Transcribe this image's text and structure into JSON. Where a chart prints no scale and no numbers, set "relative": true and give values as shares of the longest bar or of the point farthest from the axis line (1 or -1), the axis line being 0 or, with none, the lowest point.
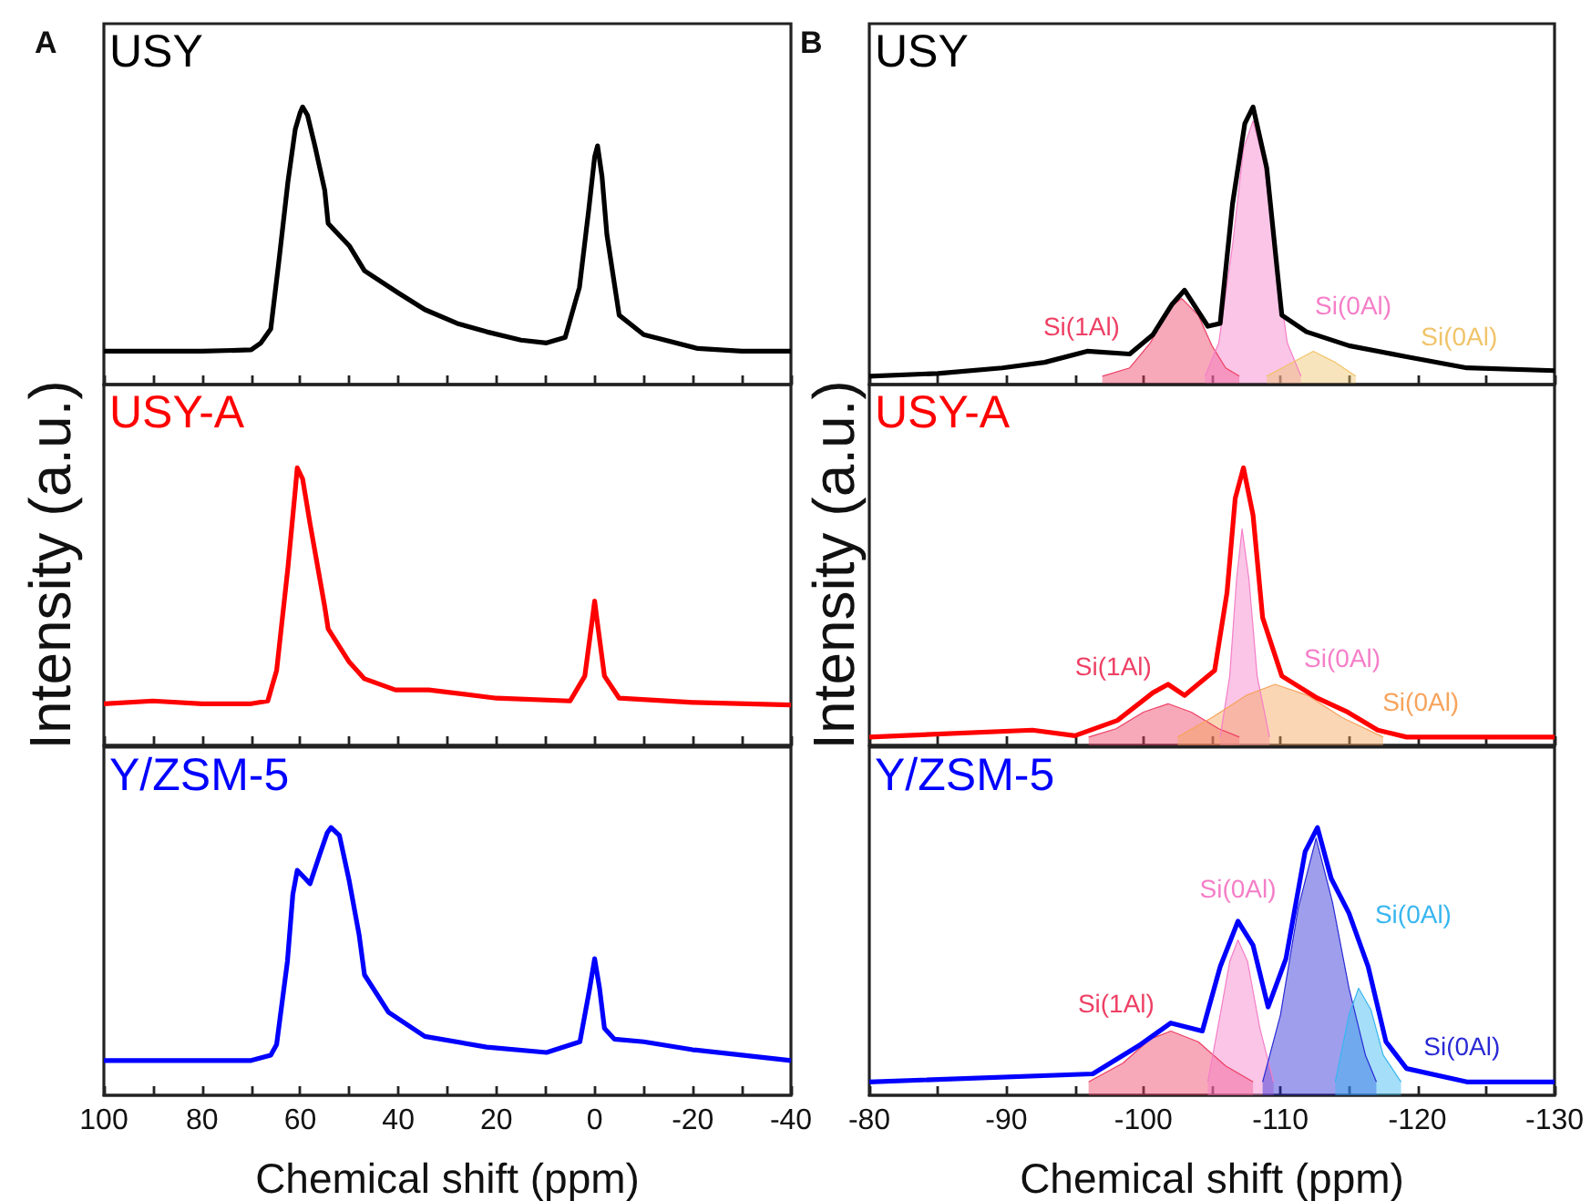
{
  "chart_data": [
    {
      "type": "line",
      "relative": true,
      "annotations": [
        "A"
      ],
      "xlim": [
        100,
        -40
      ],
      "xticks": [
        100,
        {
          "value": 90,
          "label": null
        },
        80,
        {
          "value": 70,
          "label": null
        },
        60,
        {
          "value": 50,
          "label": null
        },
        40,
        {
          "value": 30,
          "label": null
        },
        20,
        {
          "value": 10,
          "label": null
        },
        0,
        {
          "value": -10,
          "label": null
        },
        -20,
        {
          "value": -30,
          "label": null
        },
        -40
      ],
      "tick_labels": false,
      "ylabel": null,
      "series": [
        {
          "name": "USY",
          "type": "line",
          "color": "#000000",
          "x": [
            100,
            80,
            70,
            68,
            66,
            64.3,
            62.5,
            61,
            60,
            59.5,
            58.5,
            57,
            55,
            54.3,
            50,
            46.9,
            40,
            34.6,
            28,
            22,
            15,
            9.8,
            6,
            3.1,
            1.2,
            0,
            -0.6,
            -1.5,
            -2.5,
            -5,
            -10,
            -21,
            -30,
            -40
          ],
          "values": [
            0.12,
            0.12,
            0.125,
            0.15,
            0.2,
            0.45,
            0.73,
            0.92,
            0.98,
            1,
            0.97,
            0.86,
            0.7,
            0.58,
            0.5,
            0.41,
            0.33,
            0.27,
            0.22,
            0.19,
            0.16,
            0.15,
            0.17,
            0.35,
            0.63,
            0.82,
            0.86,
            0.75,
            0.54,
            0.25,
            0.18,
            0.13,
            0.12,
            0.12
          ]
        }
      ]
    },
    {
      "type": "line",
      "relative": true,
      "annotations": [
        "B"
      ],
      "xlim": [
        -80,
        -130
      ],
      "xticks": [
        -80,
        {
          "value": -85,
          "label": null
        },
        -90,
        {
          "value": -95,
          "label": null
        },
        -100,
        {
          "value": -105,
          "label": null
        },
        -110,
        {
          "value": -115,
          "label": null
        },
        -120,
        {
          "value": -125,
          "label": null
        },
        -130
      ],
      "tick_labels": false,
      "series": [
        {
          "name": "USY",
          "type": "line",
          "color": "#000000",
          "x": [
            -80,
            -85,
            -89.7,
            -92.8,
            -95.9,
            -99,
            -100.7,
            -102.1,
            -103,
            -104.7,
            -105.6,
            -106.5,
            -107.4,
            -108,
            -109,
            -110.1,
            -111.9,
            -115,
            -119.2,
            -123.6,
            -130
          ],
          "values": [
            0.03,
            0.04,
            0.06,
            0.08,
            0.12,
            0.11,
            0.18,
            0.29,
            0.34,
            0.21,
            0.22,
            0.65,
            0.94,
            1,
            0.78,
            0.25,
            0.19,
            0.14,
            0.1,
            0.06,
            0.05
          ]
        },
        {
          "name": "Si(1Al)",
          "type": "area",
          "color": "#ee3f64",
          "x": [
            -97,
            -99,
            -100.5,
            -102,
            -102.8,
            -104,
            -105,
            -106,
            -107
          ],
          "values": [
            0.03,
            0.06,
            0.15,
            0.28,
            0.31,
            0.25,
            0.14,
            0.06,
            0.03
          ]
        },
        {
          "name": "Si(0Al)",
          "type": "area",
          "color": "#f57ec8",
          "x": [
            -104.5,
            -105.5,
            -106.5,
            -107.3,
            -108,
            -108.8,
            -109.8,
            -110.5,
            -111.5
          ],
          "values": [
            0.03,
            0.15,
            0.5,
            0.85,
            0.95,
            0.8,
            0.4,
            0.15,
            0.03
          ]
        },
        {
          "name": "Si(0Al)",
          "type": "area",
          "color": "#f0c46a",
          "x": [
            -109,
            -110.5,
            -112.4,
            -114,
            -115.5
          ],
          "values": [
            0.03,
            0.07,
            0.12,
            0.08,
            0.03
          ]
        }
      ]
    },
    {
      "type": "line",
      "relative": true,
      "ylabel": "Intensity (a.u.)",
      "xlim": [
        100,
        -40
      ],
      "xticks": [
        100,
        {
          "value": 90,
          "label": null
        },
        80,
        {
          "value": 70,
          "label": null
        },
        60,
        {
          "value": 50,
          "label": null
        },
        40,
        {
          "value": 30,
          "label": null
        },
        20,
        {
          "value": 10,
          "label": null
        },
        0,
        {
          "value": -10,
          "label": null
        },
        -20,
        {
          "value": -30,
          "label": null
        },
        -40
      ],
      "tick_labels": false,
      "series": [
        {
          "name": "USY-A",
          "type": "line",
          "color": "#ff0000",
          "x": [
            100,
            90,
            80,
            70,
            66.6,
            64.8,
            62.5,
            61,
            60.6,
            59.5,
            58,
            56,
            55,
            54.3,
            50,
            46.9,
            40.6,
            33.8,
            20,
            5,
            2,
            0.5,
            0,
            -0.5,
            -2,
            -5,
            -20,
            -40
          ],
          "values": [
            0.15,
            0.16,
            0.15,
            0.15,
            0.16,
            0.27,
            0.64,
            0.92,
            1,
            0.96,
            0.8,
            0.6,
            0.5,
            0.42,
            0.3,
            0.24,
            0.2,
            0.2,
            0.17,
            0.16,
            0.25,
            0.45,
            0.52,
            0.45,
            0.25,
            0.17,
            0.155,
            0.146
          ]
        }
      ]
    },
    {
      "type": "line",
      "relative": true,
      "ylabel": "Intensity (a.u.)",
      "xlim": [
        -80,
        -130
      ],
      "xticks": [
        -80,
        {
          "value": -85,
          "label": null
        },
        -90,
        {
          "value": -95,
          "label": null
        },
        -100,
        {
          "value": -105,
          "label": null
        },
        -110,
        {
          "value": -115,
          "label": null
        },
        -120,
        {
          "value": -125,
          "label": null
        },
        -130
      ],
      "tick_labels": false,
      "series": [
        {
          "name": "USY-A",
          "type": "line",
          "color": "#ff0000",
          "x": [
            -80,
            -91.9,
            -95,
            -98.1,
            -100.7,
            -101.8,
            -103,
            -105.2,
            -106.1,
            -106.7,
            -107.3,
            -108,
            -108.7,
            -110.1,
            -112.7,
            -114.9,
            -117.1,
            -119.2,
            -130
          ],
          "values": [
            0.03,
            0.055,
            0.035,
            0.09,
            0.19,
            0.22,
            0.18,
            0.27,
            0.55,
            0.89,
            1,
            0.83,
            0.46,
            0.25,
            0.17,
            0.12,
            0.055,
            0.03,
            0.03
          ]
        },
        {
          "name": "Si(1Al)",
          "type": "area",
          "color": "#ee3f64",
          "x": [
            -96,
            -98,
            -100,
            -101.8,
            -103.5,
            -105.5,
            -107
          ],
          "values": [
            0.03,
            0.06,
            0.12,
            0.15,
            0.12,
            0.06,
            0.03
          ]
        },
        {
          "name": "Si(0Al)",
          "type": "area",
          "color": "#f57ec8",
          "x": [
            -105.6,
            -106.3,
            -106.8,
            -107.2,
            -107.7,
            -108.3,
            -109.2
          ],
          "values": [
            0.03,
            0.25,
            0.6,
            0.78,
            0.6,
            0.25,
            0.03
          ]
        },
        {
          "name": "Si(0Al)",
          "type": "area",
          "color": "#f7a35c",
          "x": [
            -102.5,
            -105,
            -107.5,
            -109.6,
            -112,
            -114.5,
            -117.5
          ],
          "values": [
            0.03,
            0.1,
            0.18,
            0.22,
            0.18,
            0.1,
            0.03
          ]
        }
      ]
    },
    {
      "type": "line",
      "relative": true,
      "xlabel": "Chemical shift (ppm)",
      "xlim": [
        100,
        -40
      ],
      "xticks": [
        100,
        {
          "value": 90,
          "label": null
        },
        80,
        {
          "value": 70,
          "label": null
        },
        60,
        {
          "value": 50,
          "label": null
        },
        40,
        {
          "value": 30,
          "label": null
        },
        20,
        {
          "value": 10,
          "label": null
        },
        0,
        {
          "value": -10,
          "label": null
        },
        -20,
        {
          "value": -30,
          "label": null
        },
        -40
      ],
      "tick_labels": "x",
      "series": [
        {
          "name": "Y/ZSM-5",
          "type": "line",
          "color": "#0000ff",
          "x": [
            100,
            80,
            70,
            66,
            64.8,
            62.6,
            61.5,
            60.6,
            59,
            58,
            56,
            54.5,
            53.7,
            52,
            50,
            48,
            46.9,
            42,
            34.6,
            22,
            9.8,
            3,
            1,
            0,
            -1,
            -2,
            -4,
            -10,
            -20,
            -30,
            -40
          ],
          "values": [
            0.13,
            0.13,
            0.13,
            0.15,
            0.19,
            0.5,
            0.75,
            0.84,
            0.81,
            0.79,
            0.9,
            0.98,
            1,
            0.97,
            0.8,
            0.6,
            0.45,
            0.31,
            0.22,
            0.18,
            0.16,
            0.2,
            0.4,
            0.51,
            0.4,
            0.25,
            0.21,
            0.2,
            0.17,
            0.15,
            0.13
          ]
        }
      ]
    },
    {
      "type": "line",
      "relative": true,
      "xlabel": "Chemical shift (ppm)",
      "xlim": [
        -80,
        -130
      ],
      "xticks": [
        -80,
        {
          "value": -85,
          "label": null
        },
        -90,
        {
          "value": -95,
          "label": null
        },
        -100,
        {
          "value": -105,
          "label": null
        },
        -110,
        {
          "value": -115,
          "label": null
        },
        -120,
        {
          "value": -125,
          "label": null
        },
        -130
      ],
      "tick_labels": "x",
      "series": [
        {
          "name": "Y/ZSM-5",
          "type": "line",
          "color": "#0000ff",
          "x": [
            -80,
            -96.3,
            -99.8,
            -102,
            -104.3,
            -105.6,
            -106.9,
            -108,
            -109.1,
            -110.4,
            -111.8,
            -112.7,
            -113.7,
            -115,
            -116.4,
            -117.7,
            -119.2,
            -123.6,
            -130
          ],
          "values": [
            0.05,
            0.08,
            0.19,
            0.27,
            0.24,
            0.48,
            0.65,
            0.56,
            0.33,
            0.51,
            0.91,
            1,
            0.81,
            0.68,
            0.48,
            0.2,
            0.1,
            0.05,
            0.05
          ]
        },
        {
          "name": "Si(1Al)",
          "type": "area",
          "color": "#ee3f64",
          "x": [
            -96,
            -98.5,
            -100.5,
            -102,
            -104,
            -106,
            -108
          ],
          "values": [
            0.05,
            0.12,
            0.21,
            0.24,
            0.2,
            0.11,
            0.05
          ]
        },
        {
          "name": "Si(0Al)",
          "type": "area",
          "color": "#f57ec8",
          "x": [
            -104.7,
            -105.6,
            -106.3,
            -106.9,
            -107.6,
            -108.5,
            -109.5
          ],
          "values": [
            0.05,
            0.3,
            0.5,
            0.58,
            0.5,
            0.25,
            0.05
          ]
        },
        {
          "name": "Si(0Al)",
          "type": "area",
          "color": "#2929d6",
          "x": [
            -108.7,
            -110,
            -111.3,
            -112.6,
            -113.8,
            -115,
            -116.2,
            -117
          ],
          "values": [
            0.05,
            0.3,
            0.7,
            0.96,
            0.72,
            0.4,
            0.15,
            0.05
          ]
        },
        {
          "name": "Si(0Al)",
          "type": "area",
          "color": "#38b6f0",
          "x": [
            -114,
            -115,
            -115.7,
            -116.6,
            -117.5,
            -118.8
          ],
          "values": [
            0.05,
            0.3,
            0.4,
            0.32,
            0.15,
            0.05
          ]
        }
      ]
    }
  ]
}
